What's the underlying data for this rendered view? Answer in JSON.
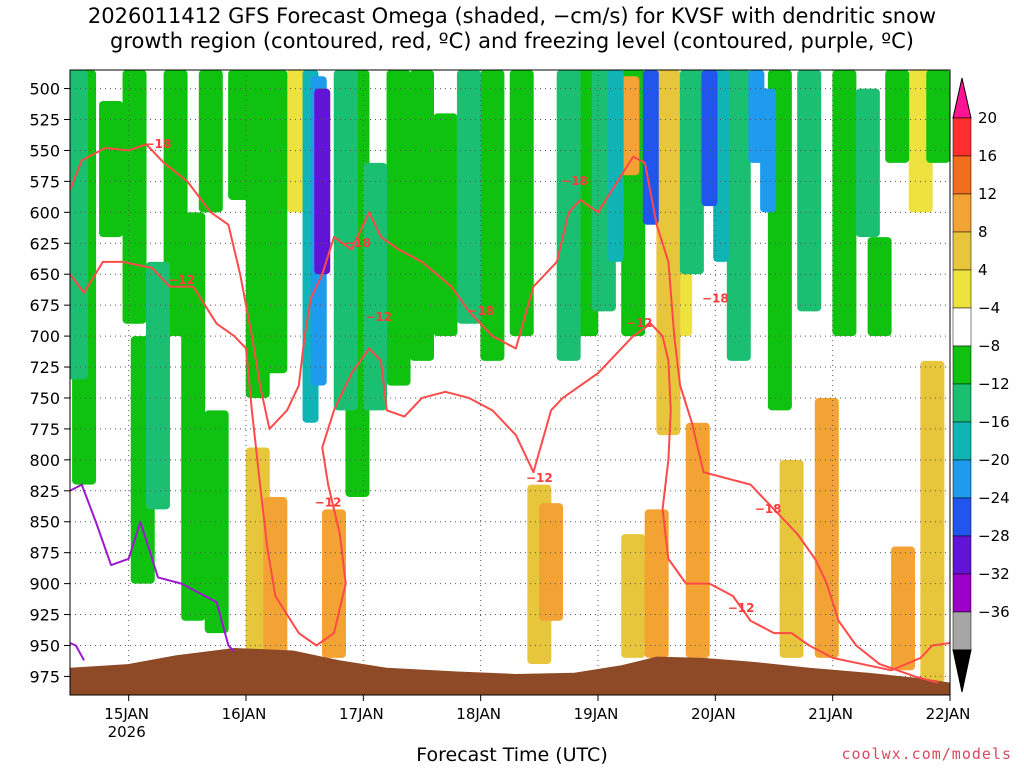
{
  "chart_data": {
    "type": "heatmap",
    "title_line1": "2026011412 GFS Forecast Omega (shaded, −cm/s) for KVSF with dendritic snow",
    "title_line2": "growth region (contoured, red, ºC) and freezing level (contoured, purple, ºC)",
    "xlabel": "Forecast Time (UTC)",
    "credit": "coolwx.com/models",
    "x_ticks": [
      {
        "day": 15,
        "label": "15JAN",
        "sub": "2026"
      },
      {
        "day": 16,
        "label": "16JAN",
        "sub": ""
      },
      {
        "day": 17,
        "label": "17JAN",
        "sub": ""
      },
      {
        "day": 18,
        "label": "18JAN",
        "sub": ""
      },
      {
        "day": 19,
        "label": "19JAN",
        "sub": ""
      },
      {
        "day": 20,
        "label": "20JAN",
        "sub": ""
      },
      {
        "day": 21,
        "label": "21JAN",
        "sub": ""
      },
      {
        "day": 22,
        "label": "22JAN",
        "sub": ""
      }
    ],
    "x_range": [
      14.5,
      22.0
    ],
    "y_ticks": [
      "500",
      "525",
      "550",
      "575",
      "600",
      "625",
      "650",
      "675",
      "700",
      "725",
      "750",
      "775",
      "800",
      "825",
      "850",
      "875",
      "900",
      "925",
      "950",
      "975"
    ],
    "y_range": [
      485,
      990
    ],
    "colorbar": {
      "labels": [
        "20",
        "16",
        "12",
        "8",
        "4",
        "−4",
        "−8",
        "−12",
        "−16",
        "−20",
        "−24",
        "−28",
        "−32",
        "−36"
      ],
      "colors": [
        "#ff1493",
        "#ff2f2f",
        "#f26d1e",
        "#f2a333",
        "#e8c63c",
        "#eee33e",
        "#ffffff",
        "#0fc20f",
        "#1bbf72",
        "#10b4b4",
        "#1e9aee",
        "#2255ee",
        "#6214d6",
        "#9a00c8",
        "#a6a6a6",
        "#000000"
      ]
    },
    "contour_labels": {
      "dgz_minus18": "−18",
      "dgz_minus12": "−12"
    },
    "omega_columns": [
      {
        "day": 14.55,
        "top": 485,
        "bottom": 735,
        "value": -12
      },
      {
        "day": 14.62,
        "top": 485,
        "bottom": 820,
        "value": -8
      },
      {
        "day": 14.85,
        "top": 510,
        "bottom": 620,
        "value": -8
      },
      {
        "day": 15.05,
        "top": 485,
        "bottom": 690,
        "value": -8
      },
      {
        "day": 15.12,
        "top": 700,
        "bottom": 900,
        "value": -8
      },
      {
        "day": 15.25,
        "top": 640,
        "bottom": 840,
        "value": -12
      },
      {
        "day": 15.4,
        "top": 485,
        "bottom": 700,
        "value": -8
      },
      {
        "day": 15.55,
        "top": 600,
        "bottom": 930,
        "value": -8
      },
      {
        "day": 15.7,
        "top": 485,
        "bottom": 600,
        "value": -8
      },
      {
        "day": 15.75,
        "top": 760,
        "bottom": 940,
        "value": -8
      },
      {
        "day": 15.95,
        "top": 485,
        "bottom": 590,
        "value": -8
      },
      {
        "day": 16.1,
        "top": 485,
        "bottom": 750,
        "value": -8
      },
      {
        "day": 16.1,
        "top": 790,
        "bottom": 960,
        "value": 8
      },
      {
        "day": 16.25,
        "top": 485,
        "bottom": 730,
        "value": -8
      },
      {
        "day": 16.25,
        "top": 830,
        "bottom": 960,
        "value": 12
      },
      {
        "day": 16.45,
        "top": 485,
        "bottom": 600,
        "value": 4
      },
      {
        "day": 16.55,
        "top": 485,
        "bottom": 770,
        "value": -16
      },
      {
        "day": 16.62,
        "top": 490,
        "bottom": 740,
        "value": -20
      },
      {
        "day": 16.65,
        "top": 500,
        "bottom": 650,
        "value": -28
      },
      {
        "day": 16.75,
        "top": 840,
        "bottom": 960,
        "value": 12
      },
      {
        "day": 16.85,
        "top": 485,
        "bottom": 760,
        "value": -12
      },
      {
        "day": 16.95,
        "top": 485,
        "bottom": 830,
        "value": -8
      },
      {
        "day": 17.1,
        "top": 560,
        "bottom": 760,
        "value": -12
      },
      {
        "day": 17.3,
        "top": 485,
        "bottom": 740,
        "value": -8
      },
      {
        "day": 17.5,
        "top": 485,
        "bottom": 720,
        "value": -8
      },
      {
        "day": 17.7,
        "top": 520,
        "bottom": 700,
        "value": -8
      },
      {
        "day": 17.9,
        "top": 485,
        "bottom": 690,
        "value": -12
      },
      {
        "day": 18.1,
        "top": 485,
        "bottom": 720,
        "value": -8
      },
      {
        "day": 18.35,
        "top": 485,
        "bottom": 700,
        "value": -8
      },
      {
        "day": 18.5,
        "top": 820,
        "bottom": 965,
        "value": 8
      },
      {
        "day": 18.6,
        "top": 835,
        "bottom": 930,
        "value": 12
      },
      {
        "day": 18.75,
        "top": 485,
        "bottom": 720,
        "value": -12
      },
      {
        "day": 18.9,
        "top": 485,
        "bottom": 700,
        "value": -8
      },
      {
        "day": 19.05,
        "top": 485,
        "bottom": 680,
        "value": -12
      },
      {
        "day": 19.15,
        "top": 485,
        "bottom": 640,
        "value": -16
      },
      {
        "day": 19.25,
        "top": 490,
        "bottom": 570,
        "value": 12
      },
      {
        "day": 19.3,
        "top": 485,
        "bottom": 700,
        "value": -8
      },
      {
        "day": 19.3,
        "top": 860,
        "bottom": 960,
        "value": 8
      },
      {
        "day": 19.45,
        "top": 485,
        "bottom": 610,
        "value": -24
      },
      {
        "day": 19.5,
        "top": 840,
        "bottom": 960,
        "value": 12
      },
      {
        "day": 19.6,
        "top": 485,
        "bottom": 780,
        "value": 8
      },
      {
        "day": 19.7,
        "top": 520,
        "bottom": 700,
        "value": 4
      },
      {
        "day": 19.8,
        "top": 485,
        "bottom": 650,
        "value": -12
      },
      {
        "day": 19.85,
        "top": 770,
        "bottom": 960,
        "value": 12
      },
      {
        "day": 19.95,
        "top": 485,
        "bottom": 595,
        "value": -24
      },
      {
        "day": 20.05,
        "top": 485,
        "bottom": 640,
        "value": -16
      },
      {
        "day": 20.2,
        "top": 485,
        "bottom": 720,
        "value": -12
      },
      {
        "day": 20.35,
        "top": 485,
        "bottom": 560,
        "value": -20
      },
      {
        "day": 20.45,
        "top": 500,
        "bottom": 600,
        "value": -20
      },
      {
        "day": 20.55,
        "top": 485,
        "bottom": 760,
        "value": -8
      },
      {
        "day": 20.65,
        "top": 800,
        "bottom": 960,
        "value": 8
      },
      {
        "day": 20.8,
        "top": 485,
        "bottom": 680,
        "value": -12
      },
      {
        "day": 20.95,
        "top": 750,
        "bottom": 960,
        "value": 12
      },
      {
        "day": 21.1,
        "top": 485,
        "bottom": 700,
        "value": -8
      },
      {
        "day": 21.3,
        "top": 500,
        "bottom": 620,
        "value": -12
      },
      {
        "day": 21.4,
        "top": 620,
        "bottom": 700,
        "value": -8
      },
      {
        "day": 21.55,
        "top": 485,
        "bottom": 560,
        "value": -8
      },
      {
        "day": 21.6,
        "top": 870,
        "bottom": 970,
        "value": 12
      },
      {
        "day": 21.75,
        "top": 485,
        "bottom": 600,
        "value": 4
      },
      {
        "day": 21.85,
        "top": 720,
        "bottom": 980,
        "value": 8
      },
      {
        "day": 21.9,
        "top": 485,
        "bottom": 560,
        "value": -8
      }
    ],
    "terrain": [
      [
        14.5,
        968
      ],
      [
        15.0,
        965
      ],
      [
        15.4,
        958
      ],
      [
        15.9,
        952
      ],
      [
        16.4,
        954
      ],
      [
        16.8,
        962
      ],
      [
        17.2,
        968
      ],
      [
        17.8,
        971
      ],
      [
        18.3,
        973
      ],
      [
        18.8,
        972
      ],
      [
        19.2,
        966
      ],
      [
        19.5,
        959
      ],
      [
        19.9,
        960
      ],
      [
        20.3,
        963
      ],
      [
        20.8,
        968
      ],
      [
        21.3,
        972
      ],
      [
        21.8,
        977
      ],
      [
        22.0,
        980
      ]
    ],
    "dgz_minus18": [
      [
        14.5,
        582
      ],
      [
        14.6,
        558
      ],
      [
        14.8,
        548
      ],
      [
        15.0,
        550
      ],
      [
        15.15,
        545
      ],
      [
        15.3,
        560
      ],
      [
        15.5,
        575
      ],
      [
        15.7,
        600
      ],
      [
        15.85,
        610
      ],
      [
        15.95,
        650
      ],
      [
        16.05,
        700
      ],
      [
        16.12,
        740
      ],
      [
        16.2,
        775
      ],
      [
        16.35,
        760
      ],
      [
        16.45,
        740
      ],
      [
        16.5,
        700
      ],
      [
        16.55,
        670
      ],
      [
        16.65,
        650
      ],
      [
        16.75,
        620
      ],
      [
        16.9,
        630
      ],
      [
        17.05,
        600
      ],
      [
        17.15,
        620
      ],
      [
        17.3,
        630
      ],
      [
        17.5,
        640
      ],
      [
        17.75,
        660
      ],
      [
        17.9,
        680
      ],
      [
        18.1,
        700
      ],
      [
        18.3,
        710
      ],
      [
        18.45,
        660
      ],
      [
        18.65,
        640
      ],
      [
        18.75,
        600
      ],
      [
        18.85,
        590
      ],
      [
        19.0,
        600
      ],
      [
        19.2,
        570
      ],
      [
        19.3,
        555
      ],
      [
        19.4,
        560
      ],
      [
        19.5,
        610
      ],
      [
        19.6,
        640
      ],
      [
        19.65,
        700
      ],
      [
        19.7,
        740
      ],
      [
        19.8,
        770
      ],
      [
        19.85,
        790
      ],
      [
        19.9,
        810
      ],
      [
        20.1,
        815
      ],
      [
        20.3,
        820
      ],
      [
        20.5,
        840
      ],
      [
        20.7,
        860
      ],
      [
        20.85,
        880
      ],
      [
        20.95,
        900
      ],
      [
        21.05,
        930
      ],
      [
        21.2,
        950
      ],
      [
        21.4,
        965
      ],
      [
        21.7,
        975
      ],
      [
        21.9,
        980
      ]
    ],
    "dgz_minus12": [
      [
        14.5,
        650
      ],
      [
        14.62,
        665
      ],
      [
        14.78,
        640
      ],
      [
        14.95,
        640
      ],
      [
        15.2,
        645
      ],
      [
        15.35,
        660
      ],
      [
        15.55,
        660
      ],
      [
        15.75,
        690
      ],
      [
        15.9,
        700
      ],
      [
        16.0,
        710
      ],
      [
        16.05,
        760
      ],
      [
        16.12,
        820
      ],
      [
        16.18,
        870
      ],
      [
        16.25,
        910
      ],
      [
        16.45,
        940
      ],
      [
        16.6,
        950
      ],
      [
        16.75,
        940
      ],
      [
        16.85,
        900
      ],
      [
        16.8,
        860
      ],
      [
        16.7,
        820
      ],
      [
        16.65,
        790
      ],
      [
        16.75,
        760
      ],
      [
        16.9,
        730
      ],
      [
        17.05,
        710
      ],
      [
        17.15,
        720
      ],
      [
        17.2,
        760
      ],
      [
        17.35,
        765
      ],
      [
        17.5,
        750
      ],
      [
        17.7,
        745
      ],
      [
        17.9,
        750
      ],
      [
        18.1,
        760
      ],
      [
        18.3,
        780
      ],
      [
        18.45,
        810
      ],
      [
        18.6,
        760
      ],
      [
        18.7,
        750
      ],
      [
        18.85,
        740
      ],
      [
        19.0,
        730
      ],
      [
        19.1,
        720
      ],
      [
        19.2,
        710
      ],
      [
        19.3,
        700
      ],
      [
        19.45,
        690
      ],
      [
        19.55,
        700
      ],
      [
        19.6,
        720
      ],
      [
        19.62,
        760
      ],
      [
        19.6,
        800
      ],
      [
        19.55,
        840
      ],
      [
        19.6,
        880
      ],
      [
        19.75,
        900
      ],
      [
        19.95,
        900
      ],
      [
        20.15,
        910
      ],
      [
        20.3,
        930
      ],
      [
        20.5,
        940
      ],
      [
        20.65,
        940
      ],
      [
        20.8,
        950
      ],
      [
        21.0,
        960
      ],
      [
        21.25,
        965
      ],
      [
        21.5,
        970
      ],
      [
        21.75,
        960
      ],
      [
        21.85,
        950
      ],
      [
        22.0,
        948
      ]
    ],
    "freezing_level": [
      [
        14.5,
        825
      ],
      [
        14.6,
        820
      ],
      [
        14.72,
        850
      ],
      [
        14.85,
        885
      ],
      [
        15.0,
        880
      ],
      [
        15.1,
        850
      ],
      [
        15.25,
        895
      ],
      [
        15.45,
        900
      ],
      [
        15.65,
        910
      ],
      [
        15.75,
        915
      ],
      [
        15.85,
        950
      ],
      [
        15.9,
        955
      ]
    ],
    "freezing_level_left": [
      [
        14.5,
        948
      ],
      [
        14.55,
        950
      ],
      [
        14.62,
        962
      ]
    ]
  }
}
